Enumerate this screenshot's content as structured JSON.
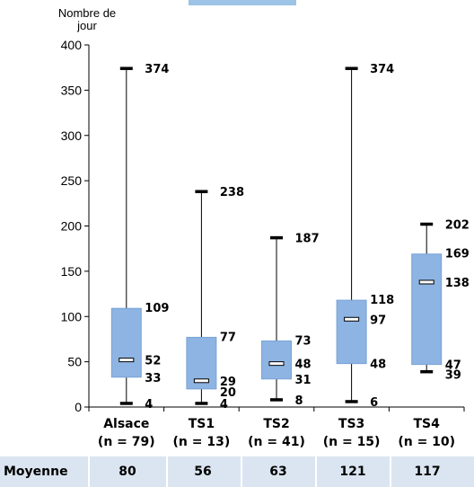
{
  "colors": {
    "box": "#8db4e2",
    "box_edge": "#7aa3d6",
    "footer_bg": "#dbe5f1"
  },
  "chart_data": {
    "type": "box",
    "ylabel_lines": [
      "Nombre de",
      "jour"
    ],
    "ylim": [
      0,
      400
    ],
    "yticks": [
      0,
      50,
      100,
      150,
      200,
      250,
      300,
      350,
      400
    ],
    "groups": [
      {
        "label": "Alsace",
        "n_label": "(n = 79)",
        "min": 4,
        "q1": 33,
        "median": 52,
        "q3": 109,
        "max": 374
      },
      {
        "label": "TS1",
        "n_label": "(n = 13)",
        "min": 4,
        "q1": 20,
        "median": 29,
        "q3": 77,
        "max": 238
      },
      {
        "label": "TS2",
        "n_label": "(n = 41)",
        "min": 8,
        "q1": 31,
        "median": 48,
        "q3": 73,
        "max": 187
      },
      {
        "label": "TS3",
        "n_label": "(n = 15)",
        "min": 6,
        "q1": 48,
        "median": 97,
        "q3": 118,
        "max": 374
      },
      {
        "label": "TS4",
        "n_label": "(n = 10)",
        "min": 39,
        "q1": 47,
        "median": 138,
        "q3": 169,
        "max": 202
      }
    ]
  },
  "footer": {
    "label": "Moyenne",
    "values": [
      "80",
      "56",
      "63",
      "121",
      "117"
    ]
  }
}
